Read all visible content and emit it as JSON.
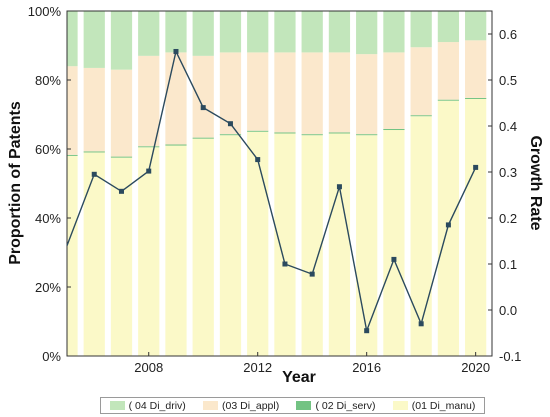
{
  "chart_data": {
    "type": "bar",
    "stacked": true,
    "xlabel": "Year",
    "ylabel": "Proportion of Patents",
    "y2label": "Growth Rate",
    "categories": [
      2005,
      2006,
      2007,
      2008,
      2009,
      2010,
      2011,
      2012,
      2013,
      2014,
      2015,
      2016,
      2017,
      2018,
      2019,
      2020
    ],
    "x_ticks": [
      "2008",
      "2012",
      "2016",
      "2020"
    ],
    "y_ticks": [
      "0%",
      "20%",
      "40%",
      "60%",
      "80%",
      "100%"
    ],
    "y2_ticks": [
      "-0.1",
      "0.0",
      "0.1",
      "0.2",
      "0.3",
      "0.4",
      "0.5",
      "0.6"
    ],
    "ylim": [
      0,
      100
    ],
    "y2lim": [
      -0.1,
      0.65
    ],
    "series": [
      {
        "name": "(01 Di_manu)",
        "color": "#fbf9c8",
        "values": [
          58,
          59,
          57.5,
          60.5,
          61,
          63,
          64,
          65,
          64.5,
          64,
          64.5,
          64,
          65.5,
          69.5,
          74,
          74.5
        ]
      },
      {
        "name": "( 02 Di_serv)",
        "color": "#73c383",
        "values": [
          0.3,
          0.3,
          0.3,
          0.3,
          0.3,
          0.3,
          0.3,
          0.3,
          0.3,
          0.3,
          0.3,
          0.3,
          0.3,
          0.3,
          0.3,
          0.3
        ]
      },
      {
        "name": "(03 Di_appl)",
        "color": "#fbe8cc",
        "values": [
          25.7,
          24.2,
          25.2,
          26.2,
          26.7,
          23.7,
          23.7,
          22.7,
          23.2,
          23.7,
          23.2,
          23.2,
          22.2,
          19.7,
          16.7,
          16.7
        ]
      },
      {
        "name": "( 04 Di_driv)",
        "color": "#c2e6bb",
        "values": [
          16,
          16.5,
          17,
          13,
          12,
          13,
          12,
          12,
          12,
          12,
          12,
          12.5,
          12,
          10.5,
          9,
          8.5
        ]
      }
    ],
    "line": {
      "name": "Growth Rate",
      "color": "#2b4a5e",
      "x": [
        2005,
        2006,
        2007,
        2008,
        2009,
        2010,
        2011,
        2012,
        2013,
        2014,
        2015,
        2016,
        2017,
        2018,
        2019,
        2020
      ],
      "values": [
        0.14,
        0.295,
        0.258,
        0.302,
        0.562,
        0.44,
        0.405,
        0.327,
        0.1,
        0.078,
        0.268,
        -0.045,
        0.11,
        -0.03,
        0.185,
        0.31
      ]
    },
    "legend_position": "bottom",
    "legend": [
      "( 04 Di_driv)",
      "(03 Di_appl)",
      "( 02 Di_serv)",
      "(01 Di_manu)"
    ]
  }
}
